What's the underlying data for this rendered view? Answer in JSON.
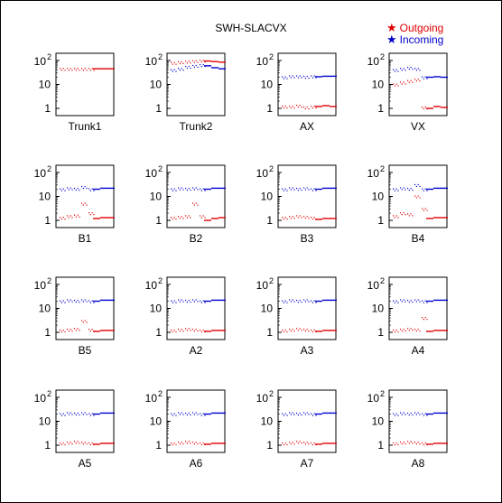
{
  "title": "SWH-SLACVX",
  "legend": [
    {
      "label": "Outgoing",
      "color": "#e00000"
    },
    {
      "label": "Incoming",
      "color": "#0000cc"
    }
  ],
  "chart_data": {
    "type": "scatter",
    "title": "SWH-SLACVX",
    "yscale": "log",
    "ylim": [
      0.5,
      200
    ],
    "yticks": [
      "1",
      "10",
      "10^2"
    ],
    "xlabel_source": "panel name",
    "series_names": [
      "Outgoing",
      "Incoming"
    ],
    "series_colors": {
      "Outgoing": "#e00000",
      "Incoming": "#0000cc"
    },
    "panels": [
      {
        "name": "Trunk1",
        "outgoing": [
          45,
          45,
          45,
          45,
          45,
          45,
          45,
          45
        ],
        "incoming": []
      },
      {
        "name": "Trunk2",
        "outgoing": [
          80,
          85,
          90,
          95,
          100,
          95,
          90,
          85
        ],
        "incoming": [
          40,
          45,
          55,
          60,
          65,
          60,
          50,
          45
        ]
      },
      {
        "name": "AX",
        "outgoing": [
          1.2,
          1.2,
          1.3,
          1.1,
          1.2,
          1.2,
          1.3,
          1.2
        ],
        "incoming": [
          20,
          22,
          22,
          21,
          22,
          21,
          22,
          22
        ]
      },
      {
        "name": "VX",
        "outgoing": [
          10,
          12,
          14,
          16,
          1.1,
          1.0,
          1.2,
          1.1
        ],
        "incoming": [
          40,
          45,
          50,
          45,
          20,
          20,
          21,
          20
        ]
      },
      {
        "name": "B1",
        "outgoing": [
          1.3,
          1.5,
          1.6,
          5.0,
          2.0,
          1.2,
          1.3,
          1.3
        ],
        "incoming": [
          20,
          22,
          21,
          25,
          20,
          20,
          22,
          22
        ]
      },
      {
        "name": "B2",
        "outgoing": [
          1.3,
          1.4,
          1.5,
          5.0,
          1.5,
          1.0,
          1.2,
          1.3
        ],
        "incoming": [
          20,
          22,
          21,
          22,
          20,
          20,
          22,
          22
        ]
      },
      {
        "name": "B3",
        "outgoing": [
          1.3,
          1.4,
          1.5,
          1.4,
          1.3,
          1.1,
          1.2,
          1.2
        ],
        "incoming": [
          20,
          22,
          21,
          22,
          20,
          20,
          22,
          22
        ]
      },
      {
        "name": "B4",
        "outgoing": [
          1.5,
          2.0,
          1.8,
          10.0,
          3.0,
          1.2,
          1.3,
          1.3
        ],
        "incoming": [
          20,
          22,
          21,
          30,
          20,
          20,
          22,
          22
        ]
      },
      {
        "name": "B5",
        "outgoing": [
          1.2,
          1.3,
          1.4,
          3.0,
          1.3,
          1.1,
          1.2,
          1.2
        ],
        "incoming": [
          20,
          22,
          21,
          22,
          20,
          20,
          22,
          22
        ]
      },
      {
        "name": "A2",
        "outgoing": [
          1.2,
          1.3,
          1.4,
          1.3,
          1.2,
          1.1,
          1.2,
          1.2
        ],
        "incoming": [
          20,
          22,
          21,
          22,
          20,
          20,
          22,
          22
        ]
      },
      {
        "name": "A3",
        "outgoing": [
          1.2,
          1.3,
          1.4,
          1.3,
          1.2,
          1.1,
          1.2,
          1.2
        ],
        "incoming": [
          20,
          22,
          21,
          22,
          20,
          20,
          22,
          22
        ]
      },
      {
        "name": "A4",
        "outgoing": [
          1.2,
          1.3,
          1.4,
          1.3,
          4.0,
          1.1,
          1.2,
          1.2
        ],
        "incoming": [
          20,
          22,
          21,
          22,
          20,
          20,
          22,
          22
        ]
      },
      {
        "name": "A5",
        "outgoing": [
          1.2,
          1.3,
          1.4,
          1.3,
          1.2,
          1.1,
          1.2,
          1.2
        ],
        "incoming": [
          20,
          22,
          21,
          22,
          20,
          20,
          22,
          22
        ]
      },
      {
        "name": "A6",
        "outgoing": [
          1.2,
          1.3,
          1.4,
          1.3,
          1.2,
          1.1,
          1.2,
          1.2
        ],
        "incoming": [
          20,
          22,
          21,
          22,
          20,
          20,
          22,
          22
        ]
      },
      {
        "name": "A7",
        "outgoing": [
          1.2,
          1.3,
          1.4,
          1.3,
          1.2,
          1.1,
          1.2,
          1.2
        ],
        "incoming": [
          20,
          22,
          21,
          22,
          20,
          20,
          22,
          22
        ]
      },
      {
        "name": "A8",
        "outgoing": [
          1.2,
          1.3,
          1.4,
          1.3,
          1.2,
          1.1,
          1.2,
          1.2
        ],
        "incoming": [
          20,
          22,
          21,
          22,
          20,
          20,
          22,
          22
        ]
      }
    ]
  }
}
